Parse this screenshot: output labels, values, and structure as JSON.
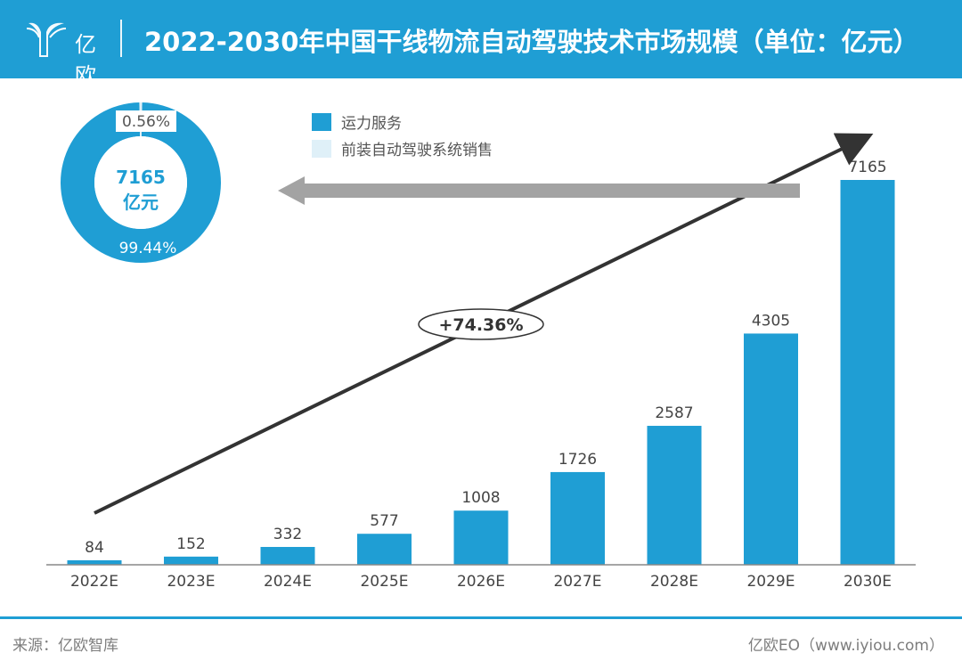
{
  "header": {
    "logo_text": "亿欧",
    "title": "2022-2030年中国干线物流自动驾驶技术市场规模（单位：亿元）"
  },
  "legend": {
    "items": [
      {
        "label": "运力服务",
        "color": "#1f9ed4"
      },
      {
        "label": "前装自动驾驶系统销售",
        "color": "#dff0f8"
      }
    ]
  },
  "donut": {
    "center_value": "7165",
    "center_unit": "亿元",
    "slices": [
      {
        "label": "99.44%",
        "value": 99.44,
        "color": "#1f9ed4"
      },
      {
        "label": "0.56%",
        "value": 0.56,
        "color": "#dff0f8"
      }
    ]
  },
  "growth_label": "+74.36%",
  "chart_data": {
    "type": "bar",
    "title": "2022-2030年中国干线物流自动驾驶技术市场规模（单位：亿元）",
    "categories": [
      "2022E",
      "2023E",
      "2024E",
      "2025E",
      "2026E",
      "2027E",
      "2028E",
      "2029E",
      "2030E"
    ],
    "values": [
      84,
      152,
      332,
      577,
      1008,
      1726,
      2587,
      4305,
      7165
    ],
    "ylim": [
      0,
      7165
    ],
    "grid": false,
    "legend_position": "top-left",
    "bar_color": "#1f9ed4",
    "annotation": "+74.36%"
  },
  "footer": {
    "source": "来源：亿欧智库",
    "credit": "亿欧EO（www.iyiou.com）"
  }
}
